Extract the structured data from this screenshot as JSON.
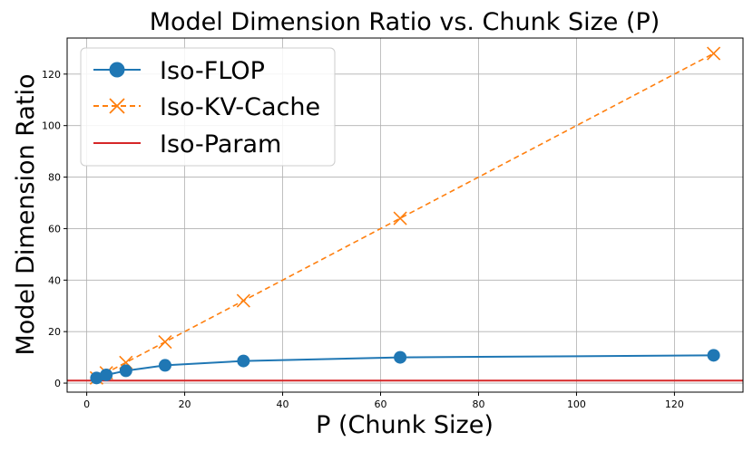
{
  "chart_data": {
    "type": "line",
    "title": "Model Dimension Ratio vs. Chunk Size (P)",
    "xlabel": "P (Chunk Size)",
    "ylabel": "Model Dimension Ratio",
    "xlim": [
      -4,
      134
    ],
    "ylim": [
      -3.5,
      134
    ],
    "xticks": [
      0,
      20,
      40,
      60,
      80,
      100,
      120
    ],
    "yticks": [
      0,
      20,
      40,
      60,
      80,
      100,
      120
    ],
    "grid": true,
    "legend_position": "upper-left",
    "series": [
      {
        "name": "Iso-FLOP",
        "color": "#1f77b4",
        "marker": "circle",
        "line_style": "solid",
        "x": [
          2,
          4,
          8,
          16,
          32,
          64,
          128
        ],
        "y": [
          2.0,
          3.2,
          4.8,
          6.9,
          8.6,
          10.0,
          10.8
        ]
      },
      {
        "name": "Iso-KV-Cache",
        "color": "#ff7f0e",
        "marker": "x",
        "line_style": "dashed",
        "x": [
          2,
          4,
          8,
          16,
          32,
          64,
          128
        ],
        "y": [
          2,
          4,
          8,
          16,
          32,
          64,
          128
        ]
      },
      {
        "name": "Iso-Param",
        "color": "#d62728",
        "marker": "none",
        "line_style": "solid",
        "type": "hline",
        "y": 1
      }
    ]
  }
}
